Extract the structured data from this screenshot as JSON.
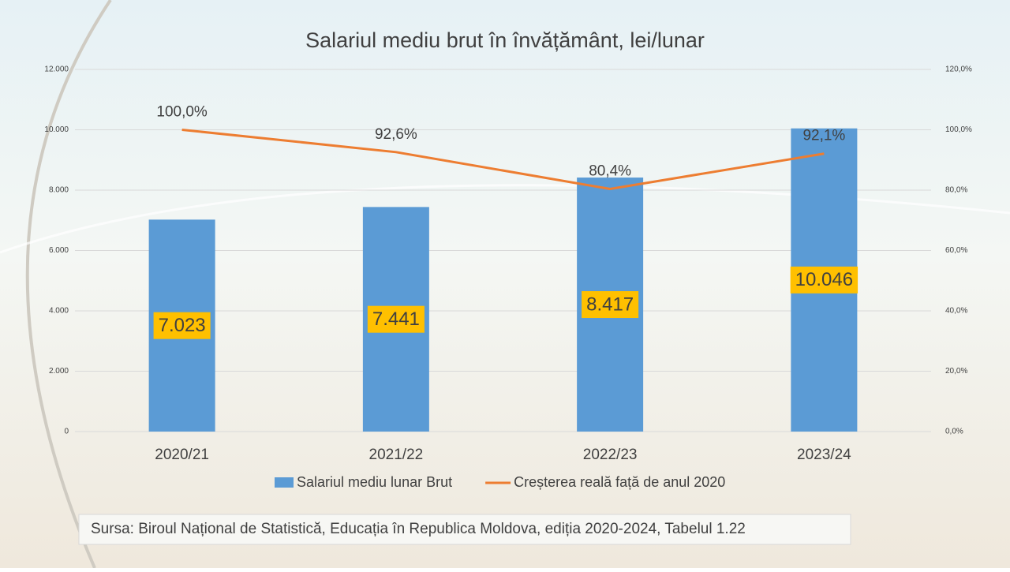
{
  "chart_data": {
    "type": "bar-line",
    "title": "Salariul mediu brut în învățământ, lei/lunar",
    "categories": [
      "2020/21",
      "2021/22",
      "2022/23",
      "2023/24"
    ],
    "series": [
      {
        "name": "Salariul mediu lunar Brut",
        "type": "bar",
        "color": "#5b9bd5",
        "label_color": "#ffc000",
        "values": [
          7023,
          7441,
          8417,
          10046
        ],
        "value_labels": [
          "7.023",
          "7.441",
          "8.417",
          "10.046"
        ]
      },
      {
        "name": "Creșterea reală față de anul 2020",
        "type": "line",
        "axis": "y2",
        "color": "#ed7d31",
        "values": [
          100,
          92.6,
          80.4,
          92.1
        ],
        "value_labels": [
          "100,0%",
          "92,6%",
          "80,4%",
          "92,1%"
        ]
      }
    ],
    "ylim": [
      0,
      12000
    ],
    "yticks": [
      0,
      {
        "value": 2000,
        "label": "2.000"
      },
      {
        "value": 4000,
        "label": "4.000"
      },
      {
        "value": 6000,
        "label": "6.000"
      },
      {
        "value": 8000,
        "label": "8.000"
      },
      {
        "value": 10000,
        "label": "10.000"
      },
      {
        "value": 12000,
        "label": "12.000"
      }
    ],
    "y2lim": [
      0,
      120
    ],
    "y2ticks": [
      {
        "value": 0,
        "label": "0,0%"
      },
      {
        "value": 20,
        "label": "20,0%"
      },
      {
        "value": 40,
        "label": "40,0%"
      },
      {
        "value": 60,
        "label": "60,0%"
      },
      {
        "value": 80,
        "label": "80,0%"
      },
      {
        "value": 100,
        "label": "100,0%"
      },
      {
        "value": 120,
        "label": "120,0%"
      }
    ],
    "grid": true,
    "legend": "bottom",
    "source": "Sursa: Biroul Național de Statistică, Educația în Republica Moldova, ediția 2020-2024, Tabelul 1.22"
  }
}
